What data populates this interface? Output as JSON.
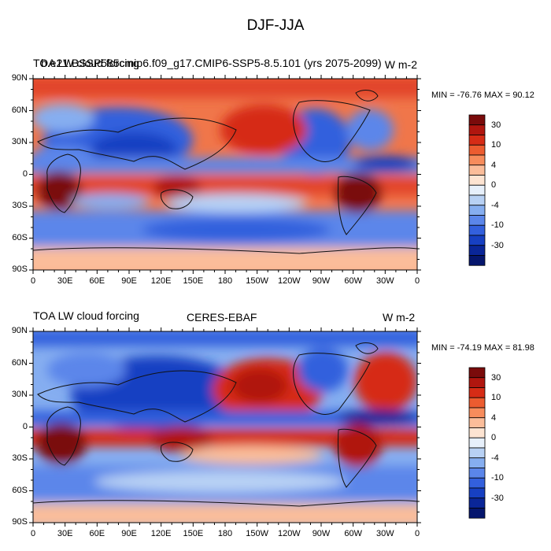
{
  "figure": {
    "title": "DJF-JJA"
  },
  "panels": [
    {
      "left_string": "TOA LW cloud forcing",
      "center_string": "b.e21.BSSP585cmip6.f09_g17.CMIP6-SSP5-8.5.101 (yrs 2075-2099)",
      "right_string": "W m-2",
      "stats": "MIN = -76.76 MAX =  90.12"
    },
    {
      "left_string": "TOA LW cloud forcing",
      "center_string": "CERES-EBAF",
      "right_string": "W m-2",
      "stats": "MIN = -74.19 MAX =  81.98"
    }
  ],
  "axes": {
    "lat_labels": [
      "90N",
      "60N",
      "30N",
      "0",
      "30S",
      "60S",
      "90S"
    ],
    "lon_labels": [
      "0",
      "30E",
      "60E",
      "90E",
      "120E",
      "150E",
      "180",
      "150W",
      "120W",
      "90W",
      "60W",
      "30W",
      "0"
    ]
  },
  "colorbar": {
    "labels": [
      "30",
      "10",
      "4",
      "0",
      "-4",
      "-10",
      "-30"
    ],
    "colors": [
      "#7a0b0b",
      "#b0160f",
      "#d62c16",
      "#ec5c30",
      "#f78c5c",
      "#fbbd9a",
      "#fde4d2",
      "#e7f0fb",
      "#b8d1f4",
      "#86aef0",
      "#5b86ea",
      "#3360dd",
      "#1740c2",
      "#0a2698",
      "#05166d"
    ]
  }
}
